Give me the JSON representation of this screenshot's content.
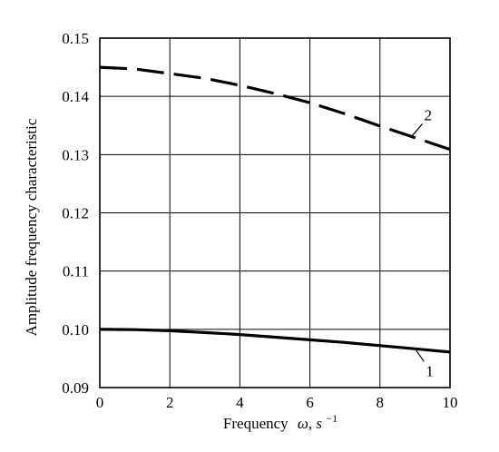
{
  "chart_data": {
    "type": "line",
    "title": "",
    "xlabel": "Frequency",
    "xlabel_symbol": "ω, s",
    "xlabel_sup": "−1",
    "ylabel": "Amplitude frequency characteristic",
    "xlim": [
      0,
      10
    ],
    "ylim": [
      0.09,
      0.15
    ],
    "x_ticks": [
      0,
      2,
      4,
      6,
      8,
      10
    ],
    "x_tick_labels": [
      "0",
      "2",
      "4",
      "6",
      "8",
      "10"
    ],
    "y_ticks": [
      0.09,
      0.1,
      0.11,
      0.12,
      0.13,
      0.14,
      0.15
    ],
    "y_tick_labels": [
      "0.09",
      "0.10",
      "0.11",
      "0.12",
      "0.13",
      "0.14",
      "0.15"
    ],
    "grid": true,
    "series": [
      {
        "label": "1",
        "style": "solid",
        "color": "#000000",
        "x": [
          0,
          1,
          2,
          3,
          4,
          5,
          6,
          7,
          8,
          9,
          10
        ],
        "y": [
          0.1,
          0.09995,
          0.09975,
          0.09945,
          0.0991,
          0.09865,
          0.0982,
          0.09775,
          0.0972,
          0.09665,
          0.0961
        ]
      },
      {
        "label": "2",
        "style": "dashed",
        "color": "#000000",
        "x": [
          0,
          1,
          2,
          3,
          4,
          5,
          6,
          7,
          8,
          9,
          10
        ],
        "y": [
          0.145,
          0.1447,
          0.1439,
          0.1431,
          0.1419,
          0.1405,
          0.1389,
          0.137,
          0.1349,
          0.1329,
          0.1309
        ]
      }
    ]
  }
}
